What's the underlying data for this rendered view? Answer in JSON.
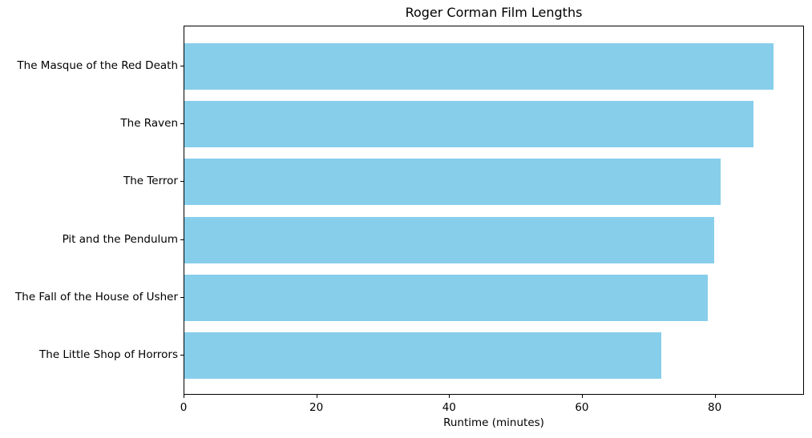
{
  "chart_data": {
    "type": "bar",
    "orientation": "horizontal",
    "title": "Roger Corman Film Lengths",
    "xlabel": "Runtime (minutes)",
    "ylabel": "",
    "categories": [
      "The Masque of the Red Death",
      "The Raven",
      "The Terror",
      "Pit and the Pendulum",
      "The Fall of the House of Usher",
      "The Little Shop of Horrors"
    ],
    "values": [
      89,
      86,
      81,
      80,
      79,
      72
    ],
    "xticks": [
      0,
      20,
      40,
      60,
      80
    ],
    "xlim": [
      0,
      93.45
    ],
    "grid": false,
    "legend": null,
    "bar_color": "#87CEEB",
    "text_color": "#000000",
    "spine_color": "#000000",
    "background_color": "#ffffff"
  }
}
